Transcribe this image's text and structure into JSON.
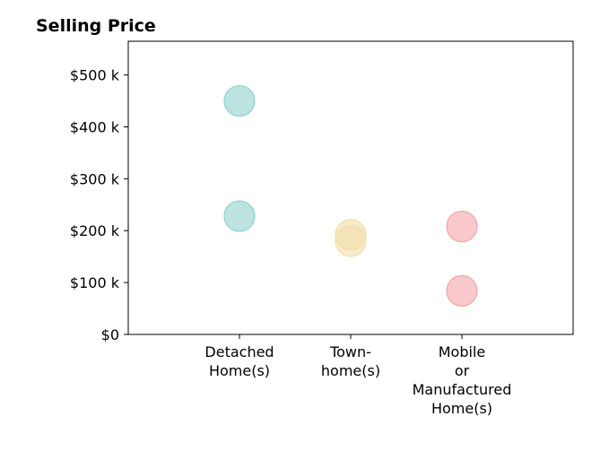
{
  "chart_data": {
    "type": "scatter",
    "title": "Selling Price",
    "xlabel": "",
    "ylabel": "",
    "categories": [
      [
        "Detached",
        "Home(s)"
      ],
      [
        "Town-",
        "home(s)"
      ],
      [
        "Mobile",
        "or",
        "Manufactured",
        "Home(s)"
      ]
    ],
    "y_tick_labels": [
      "$0",
      "$100 k",
      "$200 k",
      "$300 k",
      "$400 k",
      "$500 k"
    ],
    "y_ticks": [
      0,
      100000,
      200000,
      300000,
      400000,
      500000
    ],
    "ylim": [
      0,
      565000
    ],
    "grid": false,
    "series": [
      {
        "category": 0,
        "color": "#8fd1c9",
        "values": [
          450000,
          228000
        ]
      },
      {
        "category": 1,
        "color": "#f2dea8",
        "values": [
          192000,
          180000
        ]
      },
      {
        "category": 2,
        "color": "#f3a3ab",
        "values": [
          208000,
          84000
        ]
      }
    ]
  }
}
